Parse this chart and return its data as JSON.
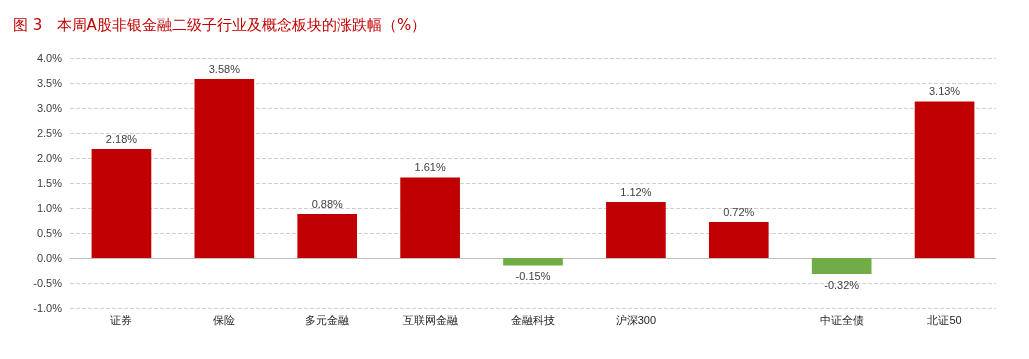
{
  "chart_data": {
    "type": "bar",
    "title": "图 3   本周A股非银金融二级子行业及概念板块的涨跌幅（%）",
    "categories": [
      "证券",
      "保险",
      "多元金融",
      "互联网金融",
      "金融科技",
      "沪深300",
      null,
      "中证全债",
      "北证50"
    ],
    "values": [
      2.18,
      3.58,
      0.88,
      1.61,
      -0.15,
      1.12,
      0.72,
      -0.32,
      3.13
    ],
    "value_labels": [
      "2.18%",
      "3.58%",
      "0.88%",
      "1.61%",
      "-0.15%",
      "1.12%",
      "0.72%",
      "-0.32%",
      "3.13%"
    ],
    "colors": [
      "#c00000",
      "#c00000",
      "#c00000",
      "#c00000",
      "#70ad47",
      "#c00000",
      "#c00000",
      "#70ad47",
      "#c00000"
    ],
    "ylim": [
      -1,
      4
    ],
    "yticks": [
      {
        "value": -1,
        "label": "-1.0%"
      },
      {
        "value": -0.5,
        "label": "-0.5%"
      },
      {
        "value": 0,
        "label": "0.0%"
      },
      {
        "value": 0.5,
        "label": "0.5%"
      },
      {
        "value": 1,
        "label": "1.0%"
      },
      {
        "value": 1.5,
        "label": "1.5%"
      },
      {
        "value": 2,
        "label": "2.0%"
      },
      {
        "value": 2.5,
        "label": "2.5%"
      },
      {
        "value": 3,
        "label": "3.0%"
      },
      {
        "value": 3.5,
        "label": "3.5%"
      },
      {
        "value": 4,
        "label": "4.0%"
      }
    ],
    "grid": "y"
  }
}
